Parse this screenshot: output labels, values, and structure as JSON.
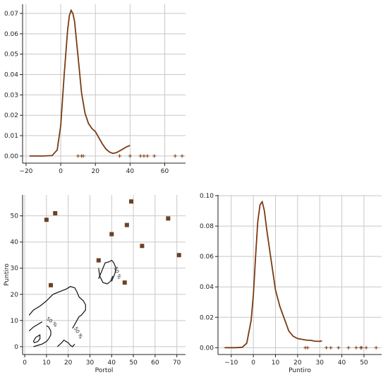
{
  "chart_data": [
    {
      "type": "line",
      "panel": "top-left",
      "description_of_axes": "density of Portol",
      "xlabel": "",
      "ylabel": "",
      "xlim": [
        -22,
        72
      ],
      "ylim": [
        -0.0035,
        0.0745
      ],
      "xticks": [
        -20,
        0,
        20,
        40,
        60
      ],
      "xtick_labels": [
        "−20",
        "0",
        "20",
        "40",
        "60"
      ],
      "yticks": [
        0.0,
        0.01,
        0.02,
        0.03,
        0.04,
        0.05,
        0.06,
        0.07
      ],
      "ytick_labels": [
        "0.00",
        "0.01",
        "0.02",
        "0.03",
        "0.04",
        "0.05",
        "0.06",
        "0.07"
      ],
      "grid": true,
      "curve_color": "#7a3b12",
      "curve": {
        "x": [
          -18,
          -10,
          -5,
          -2,
          0,
          2,
          4,
          5,
          6,
          7,
          8,
          10,
          12,
          14,
          16,
          18,
          20,
          22,
          24,
          26,
          28,
          30,
          32,
          34,
          36,
          38,
          40
        ],
        "y": [
          0.0,
          0.0,
          0.0002,
          0.003,
          0.015,
          0.04,
          0.062,
          0.069,
          0.0715,
          0.07,
          0.066,
          0.049,
          0.031,
          0.021,
          0.016,
          0.0135,
          0.012,
          0.009,
          0.006,
          0.0035,
          0.002,
          0.0013,
          0.0016,
          0.0025,
          0.0035,
          0.0045,
          0.0052
        ]
      },
      "rug_x": [
        10,
        12,
        13,
        34,
        40,
        46,
        48,
        50,
        54,
        66,
        70
      ]
    },
    {
      "type": "scatter",
      "panel": "bottom-left",
      "xlabel": "Portol",
      "ylabel": "Puntiro",
      "xlim": [
        -1,
        74
      ],
      "ylim": [
        -3,
        58
      ],
      "xticks": [
        0,
        10,
        20,
        30,
        40,
        50,
        60,
        70
      ],
      "xtick_labels": [
        "0",
        "10",
        "20",
        "30",
        "40",
        "50",
        "60",
        "70"
      ],
      "yticks": [
        0,
        10,
        20,
        30,
        40,
        50
      ],
      "ytick_labels": [
        "0",
        "10",
        "20",
        "30",
        "40",
        "50"
      ],
      "grid": true,
      "marker_color": "#6b4226",
      "points": {
        "x": [
          10,
          14,
          12,
          34,
          40,
          46,
          47,
          49,
          54,
          66,
          71
        ],
        "y": [
          48.5,
          51,
          23.5,
          33,
          43,
          24.5,
          46.5,
          55.5,
          38.5,
          49,
          35
        ]
      },
      "contour_label": "50 %",
      "contours": [
        {
          "x": [
            2,
            4,
            7,
            10,
            13,
            16,
            19,
            21,
            23,
            24,
            25,
            27,
            28,
            28,
            27,
            26,
            25,
            24,
            23,
            22
          ],
          "y": [
            12,
            14,
            15.5,
            17.5,
            20,
            21,
            22,
            23,
            22.5,
            21,
            19,
            17.5,
            16,
            14,
            13,
            12,
            11.5,
            10,
            8.5,
            7
          ]
        },
        {
          "x": [
            34,
            35,
            37,
            39,
            40,
            41,
            42,
            41.5,
            40
          ],
          "y": [
            26,
            28,
            32,
            32.5,
            33,
            32,
            30,
            28,
            25
          ]
        },
        {
          "x": [
            34,
            34.5,
            36,
            38,
            39.5,
            40.5
          ],
          "y": [
            30,
            27,
            24.5,
            24,
            25,
            27
          ]
        },
        {
          "x": [
            2,
            4,
            6,
            8
          ],
          "y": [
            6,
            7.5,
            8.5,
            9.5
          ]
        },
        {
          "x": [
            4,
            6,
            8,
            10,
            11,
            12,
            12,
            11,
            10
          ],
          "y": [
            0,
            0.5,
            1,
            2,
            3,
            4.5,
            6,
            7.5,
            8
          ]
        },
        {
          "x": [
            15,
            17,
            18,
            20,
            21,
            22,
            23
          ],
          "y": [
            0,
            1.5,
            2.5,
            1.5,
            0.5,
            0,
            1
          ]
        },
        {
          "x": [
            4,
            5,
            7,
            7,
            6,
            4.5,
            4
          ],
          "y": [
            2,
            3.5,
            4.5,
            3,
            2,
            1.5,
            2
          ]
        }
      ]
    },
    {
      "type": "line",
      "panel": "bottom-right",
      "xlabel": "Puntiro",
      "ylabel": "",
      "xlim": [
        -16,
        58
      ],
      "ylim": [
        -0.0045,
        0.1005
      ],
      "xticks": [
        -10,
        0,
        10,
        20,
        30,
        40,
        50
      ],
      "xtick_labels": [
        "−10",
        "0",
        "10",
        "20",
        "30",
        "40",
        "50"
      ],
      "yticks": [
        0.0,
        0.02,
        0.04,
        0.06,
        0.08,
        0.1
      ],
      "ytick_labels": [
        "0.00",
        "0.02",
        "0.04",
        "0.06",
        "0.08",
        "0.10"
      ],
      "grid": true,
      "curve_color": "#7a3b12",
      "curve": {
        "x": [
          -13,
          -8,
          -5,
          -3,
          -1,
          0,
          1,
          2,
          3,
          4,
          5,
          6,
          8,
          10,
          12,
          14,
          16,
          18,
          20,
          22,
          24,
          26,
          28,
          30,
          31
        ],
        "y": [
          0.0,
          0.0,
          0.0003,
          0.003,
          0.018,
          0.035,
          0.06,
          0.083,
          0.094,
          0.096,
          0.09,
          0.078,
          0.058,
          0.038,
          0.027,
          0.019,
          0.011,
          0.0075,
          0.006,
          0.0055,
          0.005,
          0.0048,
          0.0043,
          0.0042,
          0.0045
        ]
      },
      "rug_x": [
        23.5,
        24.5,
        33,
        35,
        38.5,
        43,
        46.5,
        48.5,
        49,
        51,
        55.5
      ]
    }
  ]
}
